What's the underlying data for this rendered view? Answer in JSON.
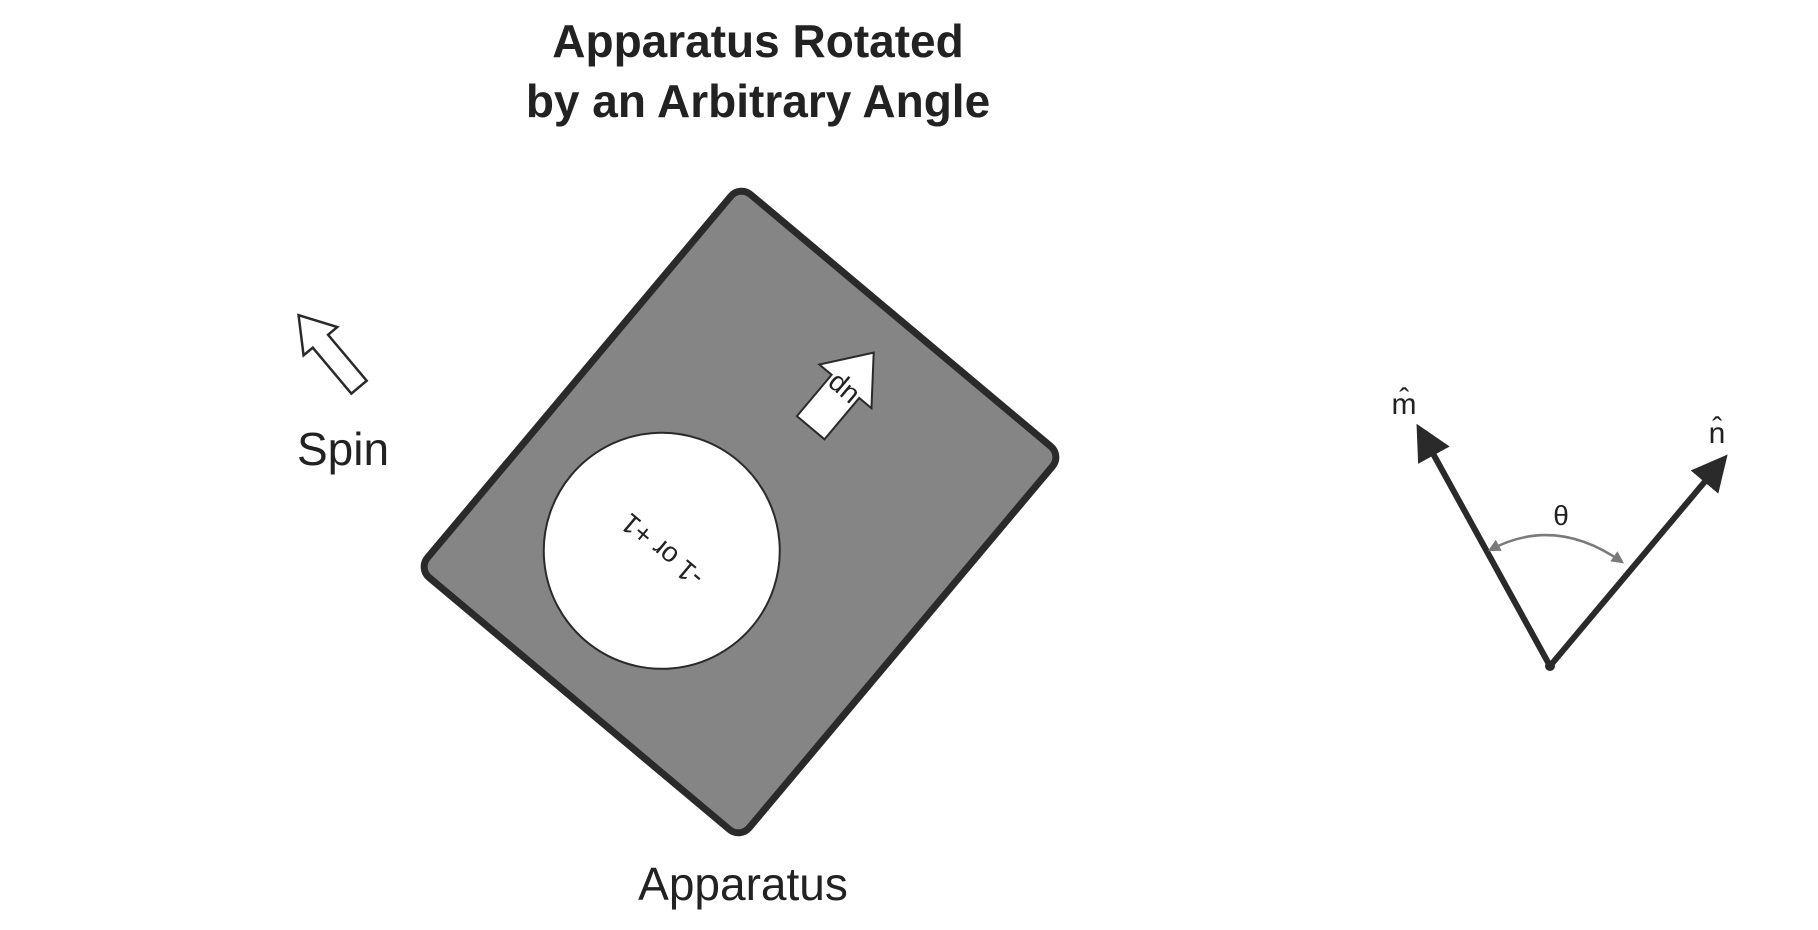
{
  "title": {
    "line1": "Apparatus Rotated",
    "line2": "by an Arbitrary Angle"
  },
  "spin": {
    "label": "Spin"
  },
  "apparatus": {
    "label": "Apparatus",
    "window_text": "-1 or +1",
    "arrow_text": "up"
  },
  "vectors": {
    "m_label": "m̂",
    "n_label": "n̂",
    "angle_label": "θ"
  },
  "colors": {
    "apparatus_fill": "#858585",
    "outline": "#2a2a2a",
    "window_fill": "#ffffff",
    "angle_arc": "#7a7a7a"
  }
}
